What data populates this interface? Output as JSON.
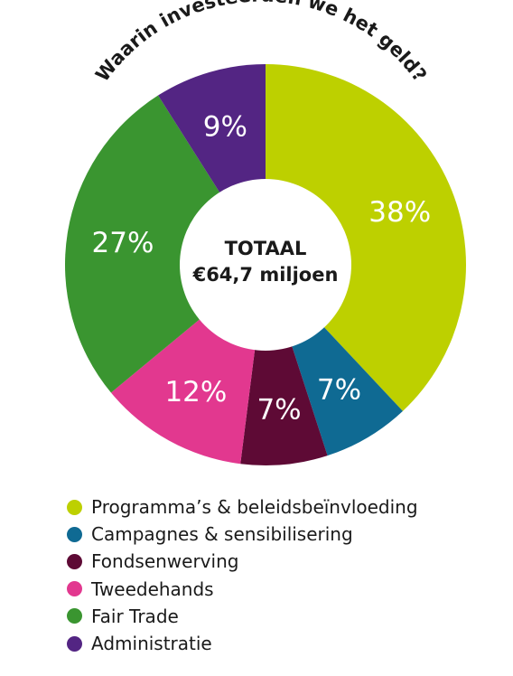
{
  "chart_data": {
    "type": "pie",
    "title": "Waarin investeerden we het geld?",
    "center": {
      "line1": "TOTAAL",
      "line2": "€64,7 miljoen"
    },
    "categories": [
      "Programma’s & beleidsbeïnvloeding",
      "Campagnes & sensibilisering",
      "Fondsenwerving",
      "Tweedehands",
      "Fair Trade",
      "Administratie"
    ],
    "values": [
      38,
      7,
      7,
      12,
      27,
      9
    ],
    "labels": [
      "38%",
      "7%",
      "7%",
      "12%",
      "27%",
      "9%"
    ],
    "colors": [
      "#bdd000",
      "#0f6a93",
      "#5e0a35",
      "#e2388f",
      "#3a9530",
      "#532583"
    ],
    "legend_placement": "bottom-left"
  }
}
